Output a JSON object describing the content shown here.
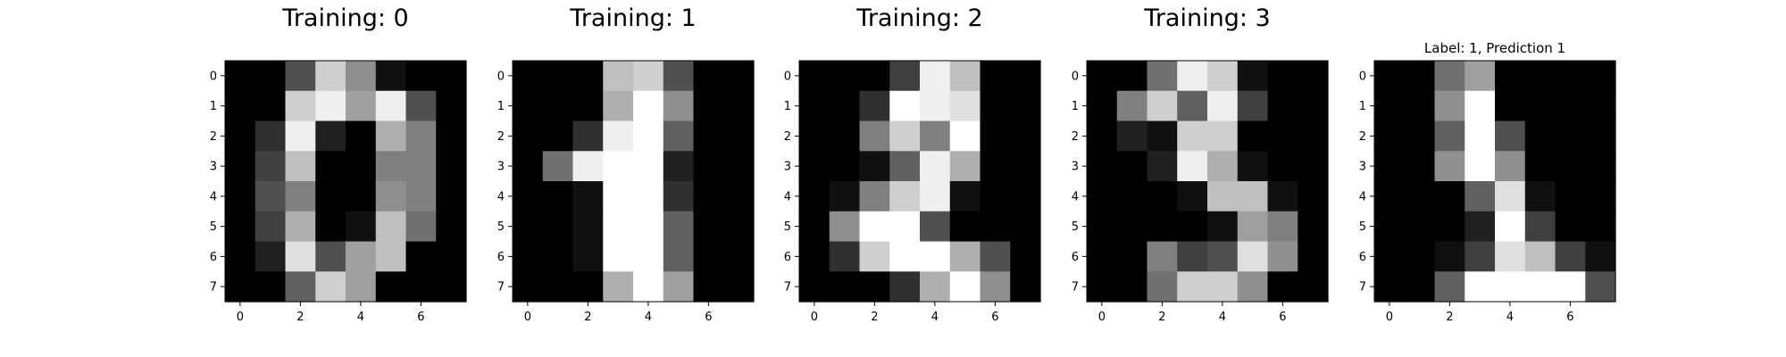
{
  "figure": {
    "background": "#ffffff",
    "colormap": "gray",
    "tick_color": "#000000"
  },
  "chart_data": [
    {
      "type": "heatmap",
      "title": "Training: 0",
      "x_ticks": [
        0,
        2,
        4,
        6
      ],
      "y_ticks": [
        0,
        1,
        2,
        3,
        4,
        5,
        6,
        7
      ],
      "xlim": [
        -0.5,
        7.5
      ],
      "ylim": [
        7.5,
        -0.5
      ],
      "value_range": [
        0,
        16
      ],
      "values": [
        [
          0,
          0,
          5,
          13,
          9,
          1,
          0,
          0
        ],
        [
          0,
          0,
          13,
          15,
          10,
          15,
          5,
          0
        ],
        [
          0,
          3,
          15,
          2,
          0,
          11,
          8,
          0
        ],
        [
          0,
          4,
          12,
          0,
          0,
          8,
          8,
          0
        ],
        [
          0,
          5,
          8,
          0,
          0,
          9,
          8,
          0
        ],
        [
          0,
          4,
          11,
          0,
          1,
          12,
          7,
          0
        ],
        [
          0,
          2,
          14,
          5,
          10,
          12,
          0,
          0
        ],
        [
          0,
          0,
          6,
          13,
          10,
          0,
          0,
          0
        ]
      ]
    },
    {
      "type": "heatmap",
      "title": "Training: 1",
      "x_ticks": [
        0,
        2,
        4,
        6
      ],
      "y_ticks": [
        0,
        1,
        2,
        3,
        4,
        5,
        6,
        7
      ],
      "xlim": [
        -0.5,
        7.5
      ],
      "ylim": [
        7.5,
        -0.5
      ],
      "value_range": [
        0,
        16
      ],
      "values": [
        [
          0,
          0,
          0,
          12,
          13,
          5,
          0,
          0
        ],
        [
          0,
          0,
          0,
          11,
          16,
          9,
          0,
          0
        ],
        [
          0,
          0,
          3,
          15,
          16,
          6,
          0,
          0
        ],
        [
          0,
          7,
          15,
          16,
          16,
          2,
          0,
          0
        ],
        [
          0,
          0,
          1,
          16,
          16,
          3,
          0,
          0
        ],
        [
          0,
          0,
          1,
          16,
          16,
          6,
          0,
          0
        ],
        [
          0,
          0,
          1,
          16,
          16,
          6,
          0,
          0
        ],
        [
          0,
          0,
          0,
          11,
          16,
          10,
          0,
          0
        ]
      ]
    },
    {
      "type": "heatmap",
      "title": "Training: 2",
      "x_ticks": [
        0,
        2,
        4,
        6
      ],
      "y_ticks": [
        0,
        1,
        2,
        3,
        4,
        5,
        6,
        7
      ],
      "xlim": [
        -0.5,
        7.5
      ],
      "ylim": [
        7.5,
        -0.5
      ],
      "value_range": [
        0,
        16
      ],
      "values": [
        [
          0,
          0,
          0,
          4,
          15,
          12,
          0,
          0
        ],
        [
          0,
          0,
          3,
          16,
          15,
          14,
          0,
          0
        ],
        [
          0,
          0,
          8,
          13,
          8,
          16,
          0,
          0
        ],
        [
          0,
          0,
          1,
          6,
          15,
          11,
          0,
          0
        ],
        [
          0,
          1,
          8,
          13,
          15,
          1,
          0,
          0
        ],
        [
          0,
          9,
          16,
          16,
          5,
          0,
          0,
          0
        ],
        [
          0,
          3,
          13,
          16,
          16,
          11,
          5,
          0
        ],
        [
          0,
          0,
          0,
          3,
          11,
          16,
          9,
          0
        ]
      ]
    },
    {
      "type": "heatmap",
      "title": "Training: 3",
      "x_ticks": [
        0,
        2,
        4,
        6
      ],
      "y_ticks": [
        0,
        1,
        2,
        3,
        4,
        5,
        6,
        7
      ],
      "xlim": [
        -0.5,
        7.5
      ],
      "ylim": [
        7.5,
        -0.5
      ],
      "value_range": [
        0,
        16
      ],
      "values": [
        [
          0,
          0,
          7,
          15,
          13,
          1,
          0,
          0
        ],
        [
          0,
          8,
          13,
          6,
          15,
          4,
          0,
          0
        ],
        [
          0,
          2,
          1,
          13,
          13,
          0,
          0,
          0
        ],
        [
          0,
          0,
          2,
          15,
          11,
          1,
          0,
          0
        ],
        [
          0,
          0,
          0,
          1,
          12,
          12,
          1,
          0
        ],
        [
          0,
          0,
          0,
          0,
          1,
          10,
          8,
          0
        ],
        [
          0,
          0,
          8,
          4,
          5,
          14,
          9,
          0
        ],
        [
          0,
          0,
          7,
          13,
          13,
          9,
          0,
          0
        ]
      ]
    },
    {
      "type": "heatmap",
      "title": "Label: 1, Prediction 1",
      "x_ticks": [
        0,
        2,
        4,
        6
      ],
      "y_ticks": [
        0,
        1,
        2,
        3,
        4,
        5,
        6,
        7
      ],
      "xlim": [
        -0.5,
        7.5
      ],
      "ylim": [
        7.5,
        -0.5
      ],
      "value_range": [
        0,
        16
      ],
      "values": [
        [
          0,
          0,
          7,
          10,
          0,
          0,
          0,
          0
        ],
        [
          0,
          0,
          9,
          16,
          0,
          0,
          0,
          0
        ],
        [
          0,
          0,
          6,
          16,
          5,
          0,
          0,
          0
        ],
        [
          0,
          0,
          9,
          16,
          9,
          0,
          0,
          0
        ],
        [
          0,
          0,
          0,
          6,
          14,
          1,
          0,
          0
        ],
        [
          0,
          0,
          0,
          2,
          16,
          4,
          0,
          0
        ],
        [
          0,
          0,
          1,
          4,
          14,
          12,
          4,
          1
        ],
        [
          0,
          0,
          6,
          16,
          16,
          16,
          16,
          5
        ]
      ]
    }
  ]
}
